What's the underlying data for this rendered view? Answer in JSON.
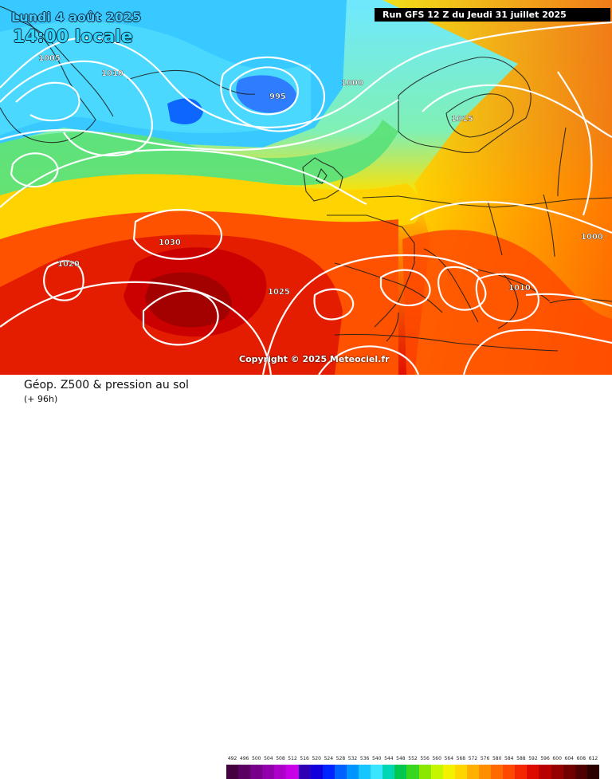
{
  "header": {
    "date": "Lundi 4 août 2025",
    "time": "14:00 locale",
    "run": "Run GFS 12 Z du Jeudi 31 juillet 2025"
  },
  "copyright": "Copyright © 2025 Meteociel.fr",
  "footer": {
    "title": "Géop. Z500 & pression au sol",
    "subtitle": "(+ 96h)"
  },
  "scale": [
    {
      "label": "492",
      "color": "#45003f"
    },
    {
      "label": "496",
      "color": "#5a0063"
    },
    {
      "label": "500",
      "color": "#760089"
    },
    {
      "label": "504",
      "color": "#9200ab"
    },
    {
      "label": "508",
      "color": "#ad00ca"
    },
    {
      "label": "512",
      "color": "#c700e8"
    },
    {
      "label": "516",
      "color": "#2e00b6"
    },
    {
      "label": "520",
      "color": "#1200da"
    },
    {
      "label": "524",
      "color": "#0024ff"
    },
    {
      "label": "528",
      "color": "#0061ff"
    },
    {
      "label": "532",
      "color": "#0094ff"
    },
    {
      "label": "536",
      "color": "#17c6ff"
    },
    {
      "label": "540",
      "color": "#39e5ff"
    },
    {
      "label": "544",
      "color": "#00d6b3"
    },
    {
      "label": "548",
      "color": "#00c84e"
    },
    {
      "label": "552",
      "color": "#38d61e"
    },
    {
      "label": "556",
      "color": "#8ae800"
    },
    {
      "label": "560",
      "color": "#c6f500"
    },
    {
      "label": "564",
      "color": "#f3f000"
    },
    {
      "label": "568",
      "color": "#ffd500"
    },
    {
      "label": "572",
      "color": "#ffb000"
    },
    {
      "label": "576",
      "color": "#ff8d00"
    },
    {
      "label": "580",
      "color": "#ff6a00"
    },
    {
      "label": "584",
      "color": "#ff4800"
    },
    {
      "label": "588",
      "color": "#f42700"
    },
    {
      "label": "592",
      "color": "#db0b00"
    },
    {
      "label": "596",
      "color": "#b90000"
    },
    {
      "label": "600",
      "color": "#950000"
    },
    {
      "label": "604",
      "color": "#700000"
    },
    {
      "label": "608",
      "color": "#4f0000"
    },
    {
      "label": "612",
      "color": "#2b0000"
    }
  ],
  "isobar_labels": [
    "1000",
    "1005",
    "1010",
    "995",
    "1015",
    "1030",
    "1020",
    "1025",
    "1010",
    "1000"
  ]
}
